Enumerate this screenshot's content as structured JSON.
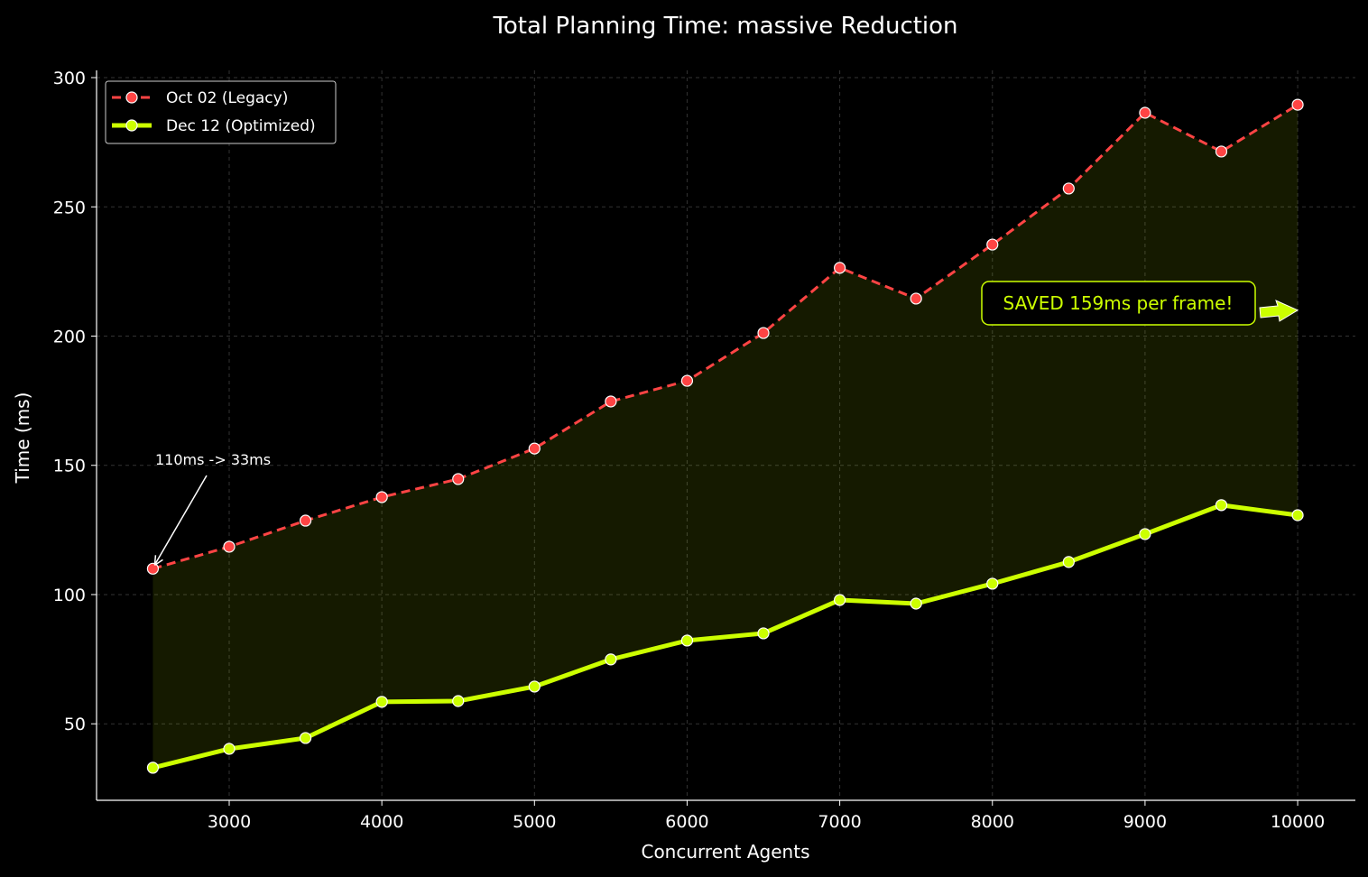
{
  "chart_data": {
    "type": "line",
    "title": "Total Planning Time: massive Reduction",
    "xlabel": "Concurrent Agents",
    "ylabel": "Time (ms)",
    "xlim": [
      2131,
      10378
    ],
    "ylim": [
      20.4,
      302.8
    ],
    "xticks": [
      3000,
      4000,
      5000,
      6000,
      7000,
      8000,
      9000,
      10000
    ],
    "yticks": [
      50,
      100,
      150,
      200,
      250,
      300
    ],
    "grid": true,
    "legend_placement": "top-left",
    "x": [
      2500,
      3000,
      3500,
      4000,
      4500,
      5000,
      5500,
      6000,
      6500,
      7000,
      7500,
      8000,
      8500,
      9000,
      9500,
      10000
    ],
    "series": [
      {
        "name": "Oct 02 (Legacy)",
        "color": "#ff4444",
        "style": "dashed",
        "values": [
          110,
          118.5,
          128.6,
          137.7,
          144.7,
          156.5,
          174.7,
          182.7,
          201.2,
          226.4,
          214.5,
          235.4,
          257.1,
          286.4,
          271.4,
          289.5
        ]
      },
      {
        "name": "Dec 12 (Optimized)",
        "color": "#ccff00",
        "style": "solid",
        "values": [
          33,
          40.3,
          44.5,
          58.5,
          58.8,
          64.4,
          74.9,
          82.2,
          85,
          97.9,
          96.5,
          104.2,
          112.6,
          123.4,
          134.6,
          130.7
        ]
      }
    ],
    "fill_between_color": "#ccff00",
    "annotations": [
      {
        "text": "110ms -> 33ms",
        "point": [
          2500,
          110
        ],
        "text_at": [
          2500,
          150
        ],
        "color": "#ffffff"
      },
      {
        "text": "SAVED 159ms per frame!",
        "point": [
          10000,
          210
        ],
        "color": "#ccff00",
        "boxed": true
      }
    ]
  }
}
